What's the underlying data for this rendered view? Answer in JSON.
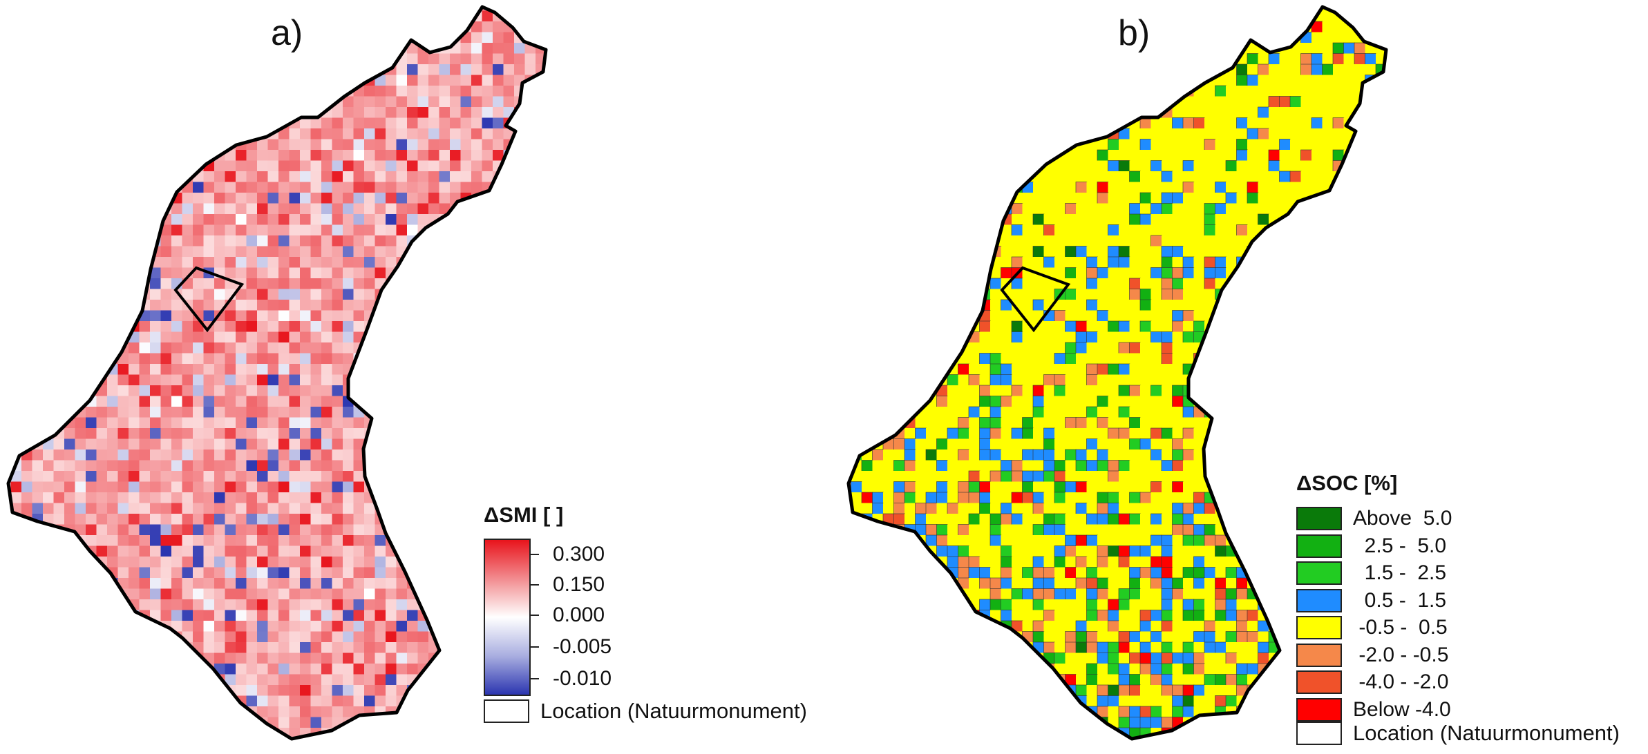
{
  "panel_a": {
    "label": "a)",
    "legend": {
      "title": "ΔSMI [ ]",
      "ticks": [
        "0.300",
        "0.150",
        "0.000",
        "-0.005",
        "-0.010"
      ],
      "location_label": "Location (Natuurmonument)"
    },
    "colors": {
      "high": "#e8141c",
      "mid": "#ffffff",
      "low": "#2b35b0"
    }
  },
  "panel_b": {
    "label": "b)",
    "legend": {
      "title": "ΔSOC [%]",
      "classes": [
        {
          "label": "Above  5.0",
          "color": "#0a7a0a"
        },
        {
          "label": "  2.5 -  5.0",
          "color": "#12b012"
        },
        {
          "label": "  1.5 -  2.5",
          "color": "#22cc22"
        },
        {
          "label": "  0.5 -  1.5",
          "color": "#1f8cff"
        },
        {
          "label": " -0.5 -  0.5",
          "color": "#ffff00"
        },
        {
          "label": " -2.0 - -0.5",
          "color": "#f5884a"
        },
        {
          "label": " -4.0 - -2.0",
          "color": "#f0522a"
        },
        {
          "label": "Below -4.0",
          "color": "#ff0000"
        }
      ],
      "location_label": "Location (Natuurmonument)"
    }
  }
}
